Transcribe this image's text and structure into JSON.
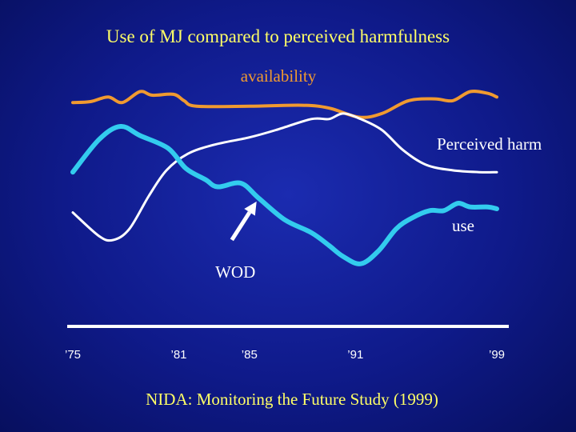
{
  "chart_data": {
    "type": "line",
    "title": "Use of MJ compared to perceived harmfulness",
    "source": "NIDA: Monitoring the Future Study (1999)",
    "x_ticks": [
      "’75",
      "’81",
      "’85",
      "’91",
      "’99"
    ],
    "x_tick_years": [
      1975,
      1981,
      1985,
      1991,
      1999
    ],
    "xlim": [
      1974.5,
      1999.5
    ],
    "ylim": [
      0,
      100
    ],
    "grid": false,
    "y_axis_labels": false,
    "series": [
      {
        "name": "availability",
        "color": "#f09a30",
        "points": [
          [
            1975,
            89
          ],
          [
            1976,
            89.5
          ],
          [
            1977,
            92
          ],
          [
            1977.8,
            89
          ],
          [
            1978.8,
            95
          ],
          [
            1979.5,
            93
          ],
          [
            1980.7,
            93.5
          ],
          [
            1981.3,
            90
          ],
          [
            1982,
            87
          ],
          [
            1985,
            87
          ],
          [
            1988,
            87.5
          ],
          [
            1989.5,
            86
          ],
          [
            1991.2,
            81
          ],
          [
            1992.5,
            83
          ],
          [
            1994,
            90
          ],
          [
            1995.5,
            91
          ],
          [
            1996.5,
            90
          ],
          [
            1997.5,
            95
          ],
          [
            1998.5,
            94
          ],
          [
            1999,
            92
          ]
        ]
      },
      {
        "name": "Perceived harm",
        "color": "#ffffff",
        "points": [
          [
            1975,
            29
          ],
          [
            1976.5,
            16
          ],
          [
            1977.3,
            14
          ],
          [
            1978.2,
            20
          ],
          [
            1979.3,
            38
          ],
          [
            1980.3,
            52
          ],
          [
            1981.5,
            61
          ],
          [
            1983,
            66
          ],
          [
            1985,
            70
          ],
          [
            1986.5,
            74
          ],
          [
            1988.5,
            80
          ],
          [
            1989.5,
            80
          ],
          [
            1990.3,
            83
          ],
          [
            1991.3,
            80
          ],
          [
            1992.5,
            74
          ],
          [
            1993.7,
            63
          ],
          [
            1995,
            55
          ],
          [
            1996.5,
            52
          ],
          [
            1998,
            51
          ],
          [
            1999,
            51
          ]
        ]
      },
      {
        "name": "use",
        "color": "#33ccee",
        "points": [
          [
            1975,
            51
          ],
          [
            1976.5,
            69
          ],
          [
            1977.7,
            76
          ],
          [
            1978.8,
            71
          ],
          [
            1980.4,
            64
          ],
          [
            1981.4,
            53
          ],
          [
            1982.5,
            47
          ],
          [
            1983.2,
            43
          ],
          [
            1984.5,
            45
          ],
          [
            1985.5,
            37
          ],
          [
            1987,
            25
          ],
          [
            1988.5,
            18
          ],
          [
            1989.5,
            11
          ],
          [
            1990.3,
            5
          ],
          [
            1991.3,
            1
          ],
          [
            1992.3,
            8
          ],
          [
            1993.3,
            20
          ],
          [
            1994.2,
            26
          ],
          [
            1995.2,
            30
          ],
          [
            1996,
            30
          ],
          [
            1996.8,
            34
          ],
          [
            1997.5,
            32
          ],
          [
            1998.5,
            32
          ],
          [
            1999,
            31
          ]
        ]
      }
    ],
    "annotation": {
      "text": "WOD",
      "arrow_from": [
        1984,
        14
      ],
      "arrow_to": [
        1985.4,
        35
      ],
      "text_at": [
        1984.2,
        3
      ]
    }
  },
  "labels": {
    "availability": "availability",
    "perceived_harm": "Perceived harm",
    "use": "use"
  },
  "colors": {
    "background": "#0f1a8a",
    "title": "#ffff66",
    "availability_label": "#f09a30",
    "harm_label": "#ffffff",
    "use_label": "#ffffff",
    "axis": "#ffffff"
  }
}
